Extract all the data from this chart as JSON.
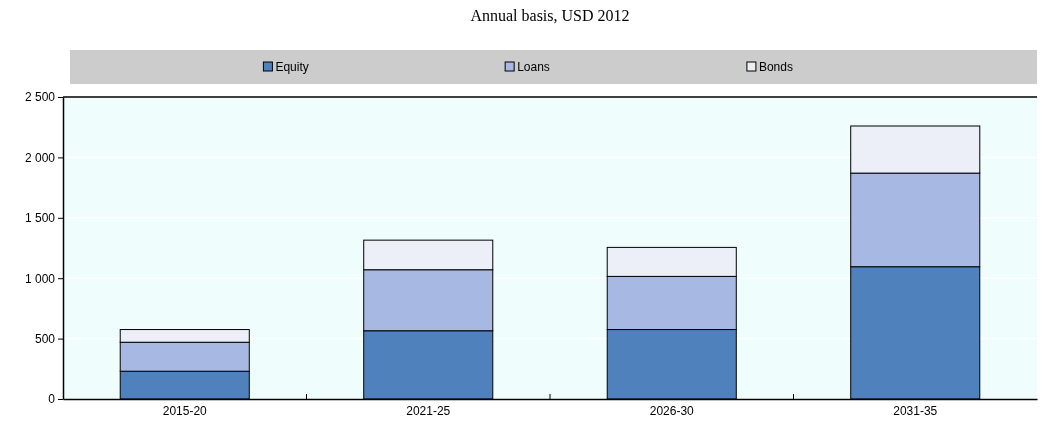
{
  "chart_data": {
    "type": "bar",
    "title": "Annual basis, USD 2012",
    "categories": [
      "2015-20",
      "2021-25",
      "2026-30",
      "2031-35"
    ],
    "stacked": true,
    "series": [
      {
        "name": "Equity",
        "color": "#4f81bd",
        "values": [
          230,
          565,
          575,
          1095
        ]
      },
      {
        "name": "Loans",
        "color": "#a7b9e3",
        "values": [
          240,
          505,
          440,
          775
        ]
      },
      {
        "name": "Bonds",
        "color": "#eceff8",
        "values": [
          105,
          245,
          240,
          390
        ]
      }
    ],
    "ylim": [
      0,
      2500
    ],
    "yticks": [
      0,
      {
        "value": 500,
        "label": "500"
      },
      {
        "value": 1000,
        "label": "1 000"
      },
      {
        "value": 1500,
        "label": "1 500"
      },
      {
        "value": 2000,
        "label": "2 000"
      },
      {
        "value": 2500,
        "label": "2 500"
      }
    ],
    "grid": "y",
    "legend": "top"
  }
}
